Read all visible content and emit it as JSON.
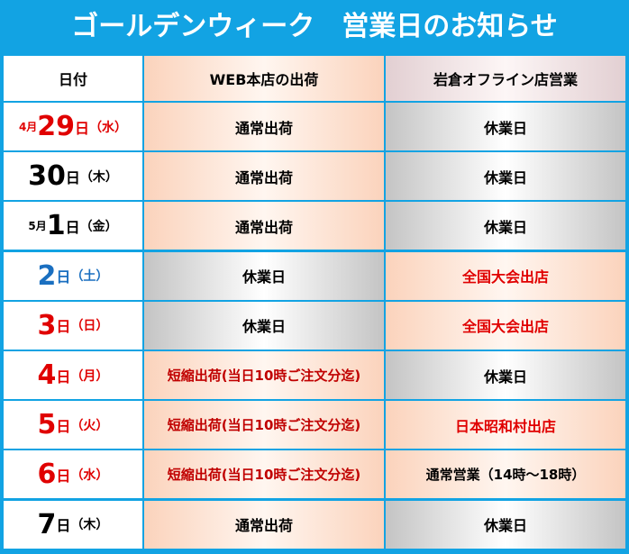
{
  "header": {
    "title": "ゴールデンウィーク　営業日のお知らせ"
  },
  "table": {
    "columns": [
      "日付",
      "WEB本店の出荷",
      "岩倉オフライン店営業"
    ],
    "rows": [
      {
        "date": {
          "month": "4月",
          "day": "29",
          "unit": "日",
          "weekday": "（水）",
          "color": "#e00000"
        },
        "web": {
          "text": "通常出荷",
          "color": "#000000",
          "bg": "peach"
        },
        "store": {
          "text": "休業日",
          "color": "#000000",
          "bg": "gray"
        }
      },
      {
        "date": {
          "day": "30",
          "unit": "日",
          "weekday": "（木）",
          "color": "#000000"
        },
        "web": {
          "text": "通常出荷",
          "color": "#000000",
          "bg": "peach"
        },
        "store": {
          "text": "休業日",
          "color": "#000000",
          "bg": "gray"
        }
      },
      {
        "date": {
          "month": "5月",
          "day": "1",
          "unit": "日",
          "weekday": "（金）",
          "color": "#000000"
        },
        "web": {
          "text": "通常出荷",
          "color": "#000000",
          "bg": "peach"
        },
        "store": {
          "text": "休業日",
          "color": "#000000",
          "bg": "gray"
        }
      },
      {
        "date": {
          "day": "2",
          "unit": "日",
          "weekday": "（土）",
          "color": "#1a6fc0"
        },
        "web": {
          "text": "休業日",
          "color": "#000000",
          "bg": "gray"
        },
        "store": {
          "text": "全国大会出店",
          "color": "#e00000",
          "bg": "peach"
        }
      },
      {
        "date": {
          "day": "3",
          "unit": "日",
          "weekday": "（日）",
          "color": "#e00000"
        },
        "web": {
          "text": "休業日",
          "color": "#000000",
          "bg": "gray"
        },
        "store": {
          "text": "全国大会出店",
          "color": "#e00000",
          "bg": "peach"
        }
      },
      {
        "date": {
          "day": "4",
          "unit": "日",
          "weekday": "（月）",
          "color": "#e00000"
        },
        "web": {
          "text": "短縮出荷(当日10時ご注文分迄)",
          "color": "#c00000",
          "bg": "peach"
        },
        "store": {
          "text": "休業日",
          "color": "#000000",
          "bg": "gray"
        }
      },
      {
        "date": {
          "day": "5",
          "unit": "日",
          "weekday": "（火）",
          "color": "#e00000"
        },
        "web": {
          "text": "短縮出荷(当日10時ご注文分迄)",
          "color": "#c00000",
          "bg": "peach"
        },
        "store": {
          "text": "日本昭和村出店",
          "color": "#e00000",
          "bg": "peach"
        }
      },
      {
        "date": {
          "day": "6",
          "unit": "日",
          "weekday": "（水）",
          "color": "#e00000"
        },
        "web": {
          "text": "短縮出荷(当日10時ご注文分迄)",
          "color": "#c00000",
          "bg": "peach"
        },
        "store": {
          "text": "通常営業（14時～18時）",
          "color": "#000000",
          "bg": "peach"
        }
      },
      {
        "date": {
          "day": "7",
          "unit": "日",
          "weekday": "（木）",
          "color": "#000000"
        },
        "web": {
          "text": "通常出荷",
          "color": "#000000",
          "bg": "peach"
        },
        "store": {
          "text": "休業日",
          "color": "#000000",
          "bg": "gray"
        }
      }
    ]
  }
}
